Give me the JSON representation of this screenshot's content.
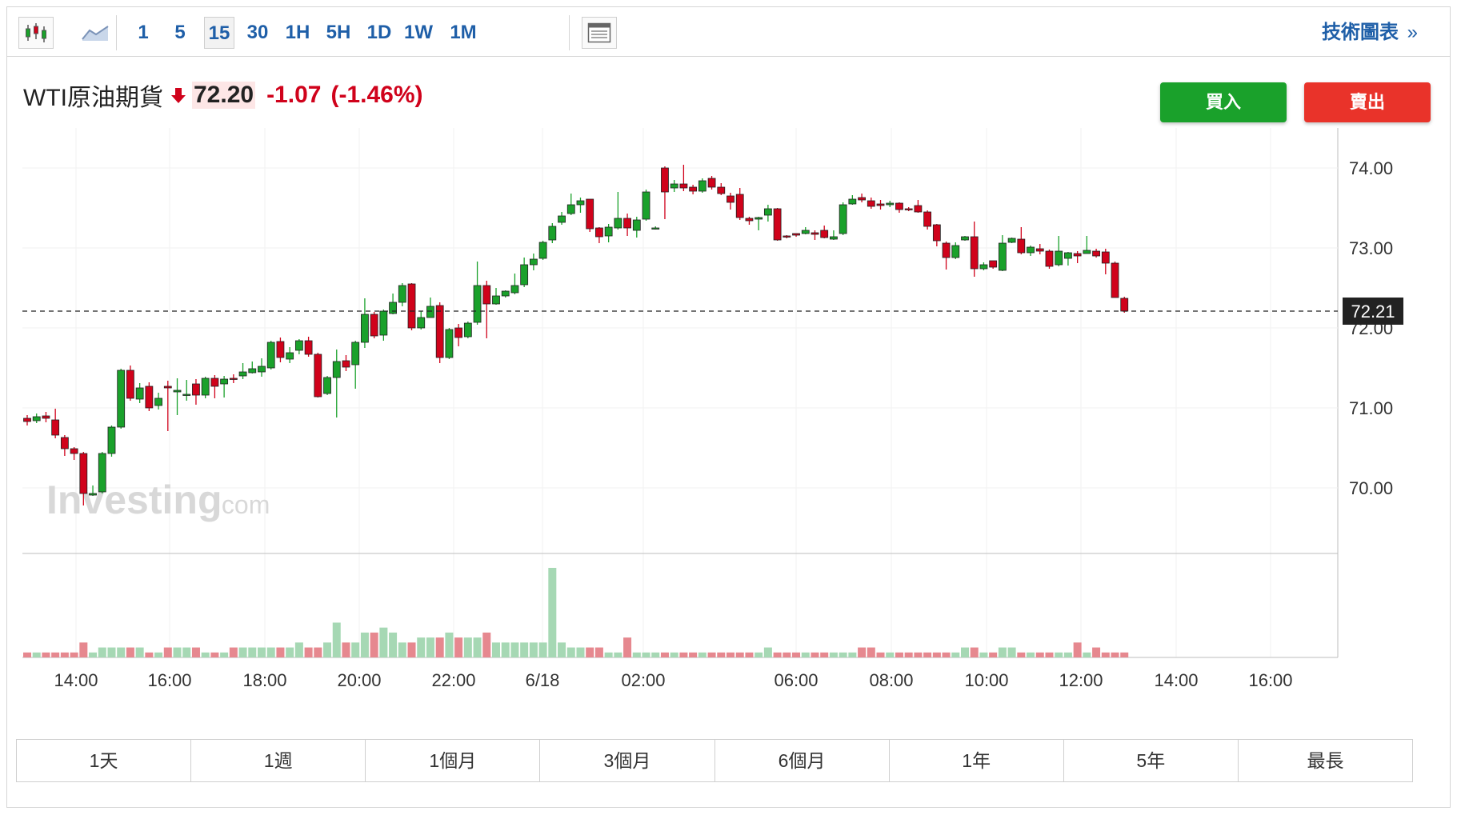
{
  "toolbar": {
    "intervals": [
      "1",
      "5",
      "15",
      "30",
      "1H",
      "5H",
      "1D",
      "1W",
      "1M"
    ],
    "active_interval": "15",
    "tech_chart_label": "技術圖表",
    "tech_chart_chevron": "»",
    "icons": [
      "candlestick-icon",
      "area-chart-icon",
      "layout-icon"
    ]
  },
  "quote": {
    "name": "WTI原油期貨",
    "price": "72.20",
    "change": "-1.07",
    "change_pct": "(-1.46%)",
    "direction": "down",
    "down_color": "#d0021b"
  },
  "actions": {
    "buy_label": "買入",
    "sell_label": "賣出",
    "buy_color": "#1aa12b",
    "sell_color": "#e9332a"
  },
  "watermark": {
    "brand": "Investing",
    "suffix": ".com"
  },
  "ranges": [
    "1天",
    "1週",
    "1個月",
    "3個月",
    "6個月",
    "1年",
    "5年",
    "最長"
  ],
  "chart_data": {
    "type": "candlestick",
    "ylim": [
      69.2,
      74.5
    ],
    "y_ticks": [
      "74.00",
      "73.00",
      "72.00",
      "71.00",
      "70.00"
    ],
    "x_tick_labels": [
      "14:00",
      "16:00",
      "18:00",
      "20:00",
      "22:00",
      "6/18",
      "02:00",
      "06:00",
      "08:00",
      "10:00",
      "12:00",
      "14:00",
      "16:00"
    ],
    "last_price_label": "72.21",
    "last_price": 72.21,
    "up_color": "#1aa12b",
    "down_color": "#d0021b",
    "candles": [
      [
        70.87,
        70.83,
        70.91,
        70.78
      ],
      [
        70.84,
        70.89,
        70.93,
        70.81
      ],
      [
        70.9,
        70.87,
        70.95,
        70.82
      ],
      [
        70.85,
        70.66,
        70.99,
        70.62
      ],
      [
        70.63,
        70.49,
        70.66,
        70.4
      ],
      [
        70.49,
        70.43,
        70.51,
        70.35
      ],
      [
        70.43,
        69.93,
        70.45,
        69.78
      ],
      [
        69.91,
        69.93,
        70.03,
        69.9
      ],
      [
        69.95,
        70.43,
        70.45,
        69.93
      ],
      [
        70.43,
        70.76,
        70.78,
        70.39
      ],
      [
        70.76,
        71.47,
        71.49,
        70.74
      ],
      [
        71.47,
        71.12,
        71.53,
        71.09
      ],
      [
        71.11,
        71.25,
        71.31,
        71.06
      ],
      [
        71.27,
        71.0,
        71.32,
        70.96
      ],
      [
        71.03,
        71.12,
        71.19,
        70.98
      ],
      [
        71.27,
        71.25,
        71.34,
        70.71
      ],
      [
        71.2,
        71.22,
        71.37,
        70.91
      ],
      [
        71.17,
        71.17,
        71.35,
        71.09
      ],
      [
        71.3,
        71.16,
        71.36,
        71.04
      ],
      [
        71.16,
        71.37,
        71.39,
        71.12
      ],
      [
        71.37,
        71.27,
        71.41,
        71.12
      ],
      [
        71.3,
        71.36,
        71.4,
        71.13
      ],
      [
        71.37,
        71.36,
        71.42,
        71.31
      ],
      [
        71.4,
        71.45,
        71.56,
        71.36
      ],
      [
        71.44,
        71.49,
        71.58,
        71.43
      ],
      [
        71.45,
        71.52,
        71.62,
        71.39
      ],
      [
        71.5,
        71.82,
        71.84,
        71.48
      ],
      [
        71.83,
        71.63,
        71.88,
        71.57
      ],
      [
        71.61,
        71.69,
        71.76,
        71.56
      ],
      [
        71.72,
        71.84,
        71.86,
        71.67
      ],
      [
        71.84,
        71.67,
        71.89,
        71.64
      ],
      [
        71.67,
        71.14,
        71.69,
        71.13
      ],
      [
        71.18,
        71.38,
        71.4,
        71.16
      ],
      [
        71.38,
        71.58,
        71.73,
        70.88
      ],
      [
        71.59,
        71.51,
        71.66,
        71.46
      ],
      [
        71.54,
        71.82,
        71.84,
        71.24
      ],
      [
        71.82,
        72.17,
        72.37,
        71.75
      ],
      [
        72.17,
        71.9,
        72.2,
        71.87
      ],
      [
        71.91,
        72.21,
        72.23,
        71.84
      ],
      [
        72.18,
        72.32,
        72.43,
        72.17
      ],
      [
        72.32,
        72.53,
        72.56,
        72.27
      ],
      [
        72.55,
        72.0,
        72.56,
        71.97
      ],
      [
        72.0,
        72.13,
        72.21,
        71.98
      ],
      [
        72.13,
        72.27,
        72.38,
        72.13
      ],
      [
        72.28,
        71.63,
        72.32,
        71.56
      ],
      [
        71.63,
        71.98,
        72.0,
        71.61
      ],
      [
        72.0,
        71.88,
        72.05,
        71.77
      ],
      [
        71.89,
        72.06,
        72.08,
        71.87
      ],
      [
        72.07,
        72.53,
        72.83,
        72.04
      ],
      [
        72.53,
        72.3,
        72.59,
        71.87
      ],
      [
        72.3,
        72.4,
        72.5,
        72.29
      ],
      [
        72.4,
        72.46,
        72.47,
        72.38
      ],
      [
        72.44,
        72.53,
        72.68,
        72.42
      ],
      [
        72.54,
        72.79,
        72.88,
        72.51
      ],
      [
        72.79,
        72.86,
        72.93,
        72.72
      ],
      [
        72.87,
        73.07,
        73.09,
        72.85
      ],
      [
        73.1,
        73.27,
        73.31,
        73.06
      ],
      [
        73.32,
        73.4,
        73.45,
        73.29
      ],
      [
        73.43,
        73.54,
        73.68,
        73.41
      ],
      [
        73.54,
        73.59,
        73.63,
        73.44
      ],
      [
        73.61,
        73.24,
        73.6,
        73.2
      ],
      [
        73.25,
        73.14,
        73.26,
        73.06
      ],
      [
        73.15,
        73.26,
        73.3,
        73.07
      ],
      [
        73.25,
        73.37,
        73.7,
        73.23
      ],
      [
        73.37,
        73.25,
        73.43,
        73.15
      ],
      [
        73.22,
        73.35,
        73.39,
        73.13
      ],
      [
        73.36,
        73.7,
        73.73,
        73.34
      ],
      [
        73.24,
        73.25,
        73.27,
        73.23
      ],
      [
        74.0,
        73.7,
        74.02,
        73.36
      ],
      [
        73.75,
        73.8,
        73.85,
        73.7
      ],
      [
        73.8,
        73.75,
        74.04,
        73.71
      ],
      [
        73.76,
        73.71,
        73.79,
        73.67
      ],
      [
        73.71,
        73.84,
        73.87,
        73.69
      ],
      [
        73.87,
        73.76,
        73.9,
        73.73
      ],
      [
        73.76,
        73.68,
        73.81,
        73.66
      ],
      [
        73.65,
        73.57,
        73.69,
        73.48
      ],
      [
        73.67,
        73.38,
        73.75,
        73.35
      ],
      [
        73.37,
        73.34,
        73.39,
        73.29
      ],
      [
        73.36,
        73.38,
        73.39,
        73.22
      ],
      [
        73.41,
        73.49,
        73.54,
        73.33
      ],
      [
        73.49,
        73.1,
        73.5,
        73.09
      ],
      [
        73.15,
        73.14,
        73.16,
        73.12
      ],
      [
        73.18,
        73.16,
        73.18,
        73.14
      ],
      [
        73.18,
        73.22,
        73.26,
        73.17
      ],
      [
        73.19,
        73.17,
        73.22,
        73.1
      ],
      [
        73.22,
        73.13,
        73.28,
        73.12
      ],
      [
        73.11,
        73.14,
        73.22,
        73.1
      ],
      [
        73.18,
        73.54,
        73.57,
        73.16
      ],
      [
        73.55,
        73.61,
        73.66,
        73.54
      ],
      [
        73.63,
        73.6,
        73.68,
        73.57
      ],
      [
        73.59,
        73.52,
        73.63,
        73.49
      ],
      [
        73.55,
        73.53,
        73.6,
        73.48
      ],
      [
        73.54,
        73.56,
        73.59,
        73.51
      ],
      [
        73.56,
        73.48,
        73.57,
        73.44
      ],
      [
        73.49,
        73.48,
        73.51,
        73.46
      ],
      [
        73.53,
        73.45,
        73.6,
        73.44
      ],
      [
        73.45,
        73.27,
        73.47,
        73.23
      ],
      [
        73.29,
        73.09,
        73.3,
        73.02
      ],
      [
        73.06,
        72.88,
        73.08,
        72.73
      ],
      [
        72.88,
        73.03,
        73.07,
        72.86
      ],
      [
        73.1,
        73.14,
        73.15,
        73.09
      ],
      [
        73.14,
        72.74,
        73.33,
        72.64
      ],
      [
        72.74,
        72.79,
        72.82,
        72.72
      ],
      [
        72.84,
        72.76,
        72.8,
        72.74
      ],
      [
        72.72,
        73.06,
        73.16,
        72.71
      ],
      [
        73.07,
        73.12,
        73.13,
        73.06
      ],
      [
        73.11,
        72.94,
        73.26,
        72.92
      ],
      [
        72.94,
        73.01,
        73.03,
        72.9
      ],
      [
        72.99,
        72.96,
        73.05,
        72.92
      ],
      [
        72.96,
        72.77,
        72.98,
        72.74
      ],
      [
        72.79,
        72.96,
        73.15,
        72.77
      ],
      [
        72.87,
        72.94,
        72.95,
        72.78
      ],
      [
        72.93,
        72.9,
        72.96,
        72.81
      ],
      [
        72.93,
        72.97,
        73.15,
        72.93
      ],
      [
        72.96,
        72.9,
        72.99,
        72.88
      ],
      [
        72.95,
        72.81,
        72.99,
        72.67
      ],
      [
        72.81,
        72.38,
        72.83,
        72.38
      ],
      [
        72.37,
        72.21,
        72.39,
        72.19
      ]
    ],
    "volumes": [
      1,
      1,
      1,
      1,
      1,
      1,
      3,
      1,
      2,
      2,
      2,
      2,
      2,
      1,
      1,
      2,
      2,
      2,
      2,
      1,
      1,
      1,
      2,
      2,
      2,
      2,
      2,
      2,
      2,
      3,
      2,
      2,
      3,
      7,
      3,
      3,
      5,
      5,
      6,
      5,
      3,
      3,
      4,
      4,
      4,
      5,
      4,
      4,
      4,
      5,
      3,
      3,
      3,
      3,
      3,
      3,
      18,
      3,
      2,
      2,
      2,
      2,
      1,
      1,
      4,
      1,
      1,
      1,
      1,
      1,
      1,
      1,
      1,
      1,
      1,
      1,
      1,
      1,
      1,
      2,
      1,
      1,
      1,
      1,
      1,
      1,
      1,
      1,
      1,
      2,
      2,
      1,
      1,
      1,
      1,
      1,
      1,
      1,
      1,
      1,
      2,
      2,
      1,
      1,
      2,
      2,
      1,
      1,
      1,
      1,
      1,
      1,
      3,
      1,
      2,
      1,
      1,
      1
    ]
  }
}
